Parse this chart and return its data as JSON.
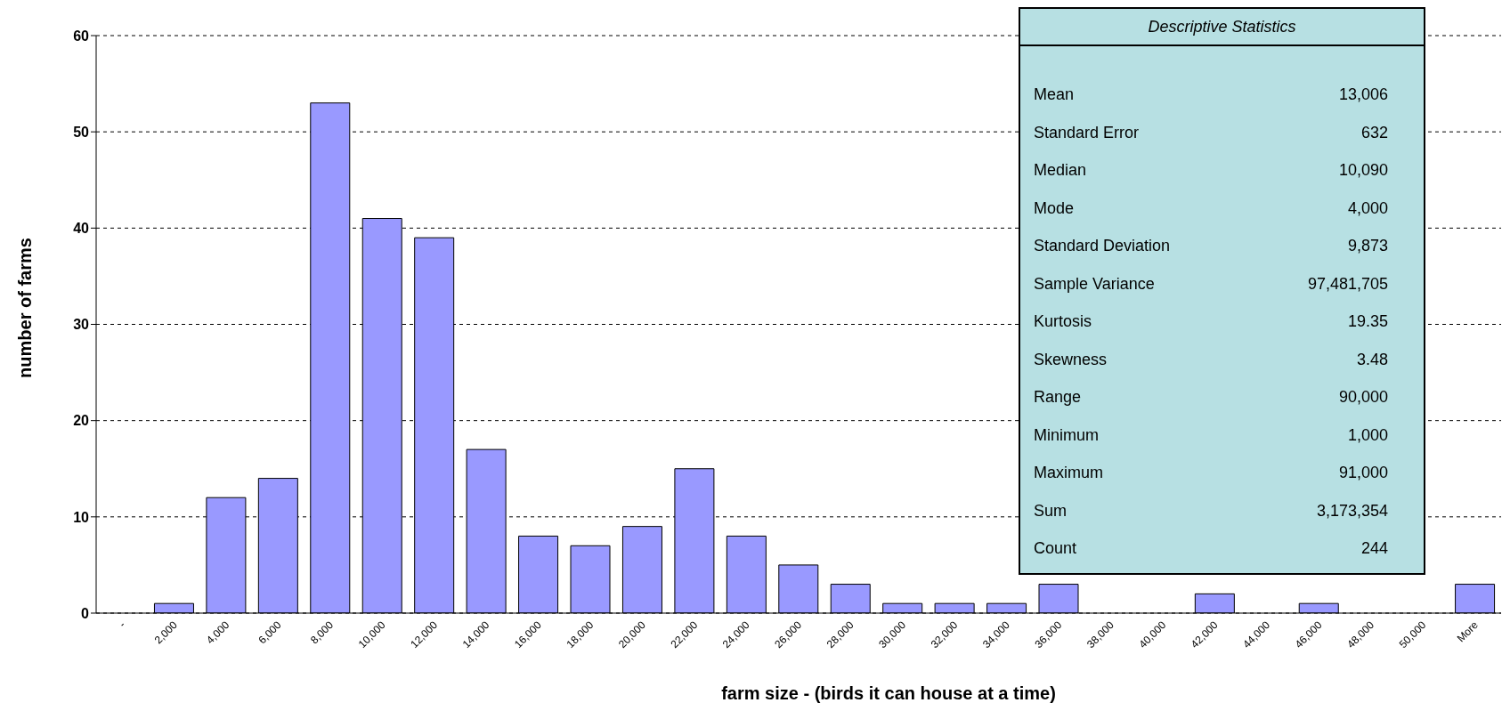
{
  "chart_data": {
    "type": "bar",
    "xlabel": "farm size - (birds it can house at a time)",
    "ylabel": "number of farms",
    "categories": [
      "-",
      "2,000",
      "4,000",
      "6,000",
      "8,000",
      "10,000",
      "12,000",
      "14,000",
      "16,000",
      "18,000",
      "20,000",
      "22,000",
      "24,000",
      "26,000",
      "28,000",
      "30,000",
      "32,000",
      "34,000",
      "36,000",
      "38,000",
      "40,000",
      "42,000",
      "44,000",
      "46,000",
      "48,000",
      "50,000",
      "More"
    ],
    "values": [
      0,
      1,
      12,
      14,
      53,
      41,
      39,
      17,
      8,
      7,
      9,
      15,
      8,
      5,
      3,
      1,
      1,
      1,
      3,
      0,
      0,
      2,
      0,
      1,
      0,
      0,
      3
    ],
    "color": "#9999ff",
    "ylim": [
      0,
      60
    ],
    "yticks": [
      0,
      10,
      20,
      30,
      40,
      50,
      60
    ],
    "grid": "y",
    "annotations": [
      "Descriptive Statistics",
      "Mean",
      "13,006",
      "Standard Error",
      "632",
      "Median",
      "10,090",
      "Mode",
      "4,000",
      "Standard Deviation",
      "9,873",
      "Sample Variance",
      "97,481,705",
      "Kurtosis",
      "19.35",
      "Skewness",
      "3.48",
      "Range",
      "90,000",
      "Minimum",
      "1,000",
      "Maximum",
      "91,000",
      "Sum",
      "3,173,354",
      "Count",
      "244"
    ]
  }
}
